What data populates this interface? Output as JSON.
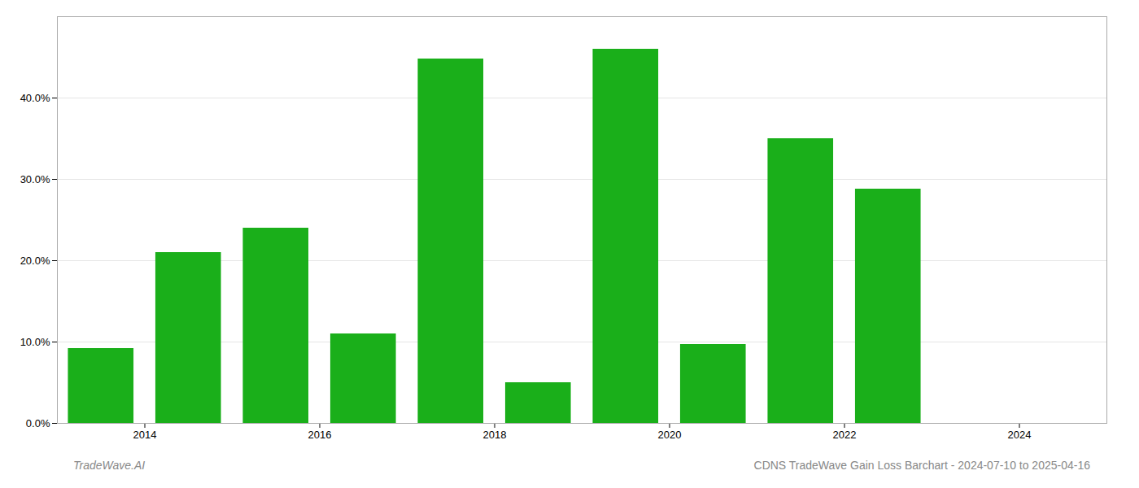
{
  "chart_data": {
    "type": "bar",
    "x": [
      2013,
      2014,
      2015,
      2016,
      2017,
      2018,
      2019,
      2020,
      2021,
      2022,
      2023
    ],
    "values": [
      0.092,
      0.21,
      0.24,
      0.11,
      0.448,
      0.05,
      0.46,
      0.097,
      0.35,
      0.288,
      0.0
    ],
    "color": "#1aaf1a",
    "xlim": [
      2012.5,
      2024.5
    ],
    "xticks": [
      {
        "value": 2013.5,
        "label": "2014"
      },
      {
        "value": 2015.5,
        "label": "2016"
      },
      {
        "value": 2017.5,
        "label": "2018"
      },
      {
        "value": 2019.5,
        "label": "2020"
      },
      {
        "value": 2021.5,
        "label": "2022"
      },
      {
        "value": 2023.5,
        "label": "2024"
      }
    ],
    "ylim": [
      0,
      0.5
    ],
    "yticks": [
      {
        "value": 0.0,
        "label": "0.0%"
      },
      {
        "value": 0.1,
        "label": "10.0%"
      },
      {
        "value": 0.2,
        "label": "20.0%"
      },
      {
        "value": 0.3,
        "label": "30.0%"
      },
      {
        "value": 0.4,
        "label": "40.0%"
      }
    ],
    "grid": true,
    "annotations": [
      "TradeWave.AI",
      "CDNS TradeWave Gain Loss Barchart - 2024-07-10 to 2025-04-16"
    ]
  }
}
